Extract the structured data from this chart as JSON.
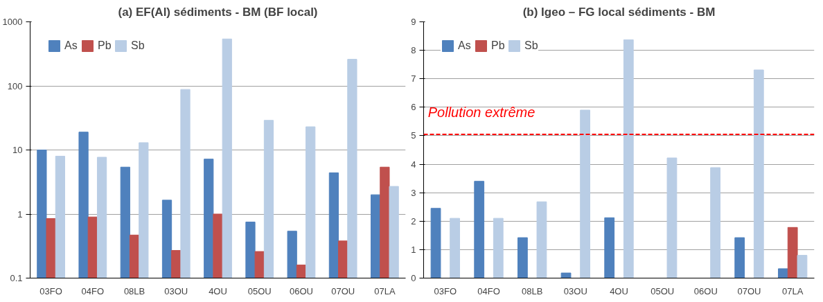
{
  "chart_data": [
    {
      "type": "bar",
      "title": "(a) EF(Al) sédiments - BM (BF local)",
      "categories": [
        "03FO",
        "04FO",
        "08LB",
        "03OU",
        "4OU",
        "05OU",
        "06OU",
        "07OU",
        "07LA"
      ],
      "series": [
        {
          "name": "As",
          "color": "#4f81bd",
          "values": [
            10,
            19,
            5.4,
            1.65,
            7.2,
            0.75,
            0.54,
            4.4,
            2.0
          ]
        },
        {
          "name": "Pb",
          "color": "#c0504d",
          "values": [
            0.85,
            0.9,
            0.47,
            0.27,
            1.0,
            0.26,
            0.16,
            0.38,
            5.4
          ]
        },
        {
          "name": "Sb",
          "color": "#b9cde5",
          "values": [
            8,
            7.7,
            13,
            88,
            540,
            29,
            23,
            260,
            2.7
          ]
        }
      ],
      "log": "y",
      "ylim": [
        0.1,
        1000
      ],
      "yticks": [
        0.1,
        1,
        10,
        100,
        1000
      ],
      "grid": "y",
      "legend": "top left"
    },
    {
      "type": "bar",
      "title": "(b) Igeo – FG local sédiments - BM",
      "categories": [
        "03FO",
        "04FO",
        "08LB",
        "03OU",
        "4OU",
        "05OU",
        "06OU",
        "07OU",
        "07LA"
      ],
      "series": [
        {
          "name": "As",
          "color": "#4f81bd",
          "values": [
            2.45,
            3.4,
            1.42,
            0.18,
            2.12,
            0,
            0,
            1.42,
            0.33
          ]
        },
        {
          "name": "Pb",
          "color": "#c0504d",
          "values": [
            0,
            0,
            0,
            0,
            0,
            0,
            0,
            0,
            1.78
          ]
        },
        {
          "name": "Sb",
          "color": "#b9cde5",
          "values": [
            2.1,
            2.1,
            2.68,
            5.9,
            8.37,
            4.22,
            3.88,
            7.31,
            0.8
          ]
        }
      ],
      "ylim": [
        0,
        9
      ],
      "yticks": [
        0,
        1,
        2,
        3,
        4,
        5,
        6,
        7,
        8,
        9
      ],
      "grid": "y",
      "legend": "top left",
      "ref_lines": [
        {
          "axis": "y",
          "value": 5.05,
          "label": "Pollution extrême",
          "color": "#ff0000",
          "line_style": "dashed"
        }
      ]
    }
  ]
}
